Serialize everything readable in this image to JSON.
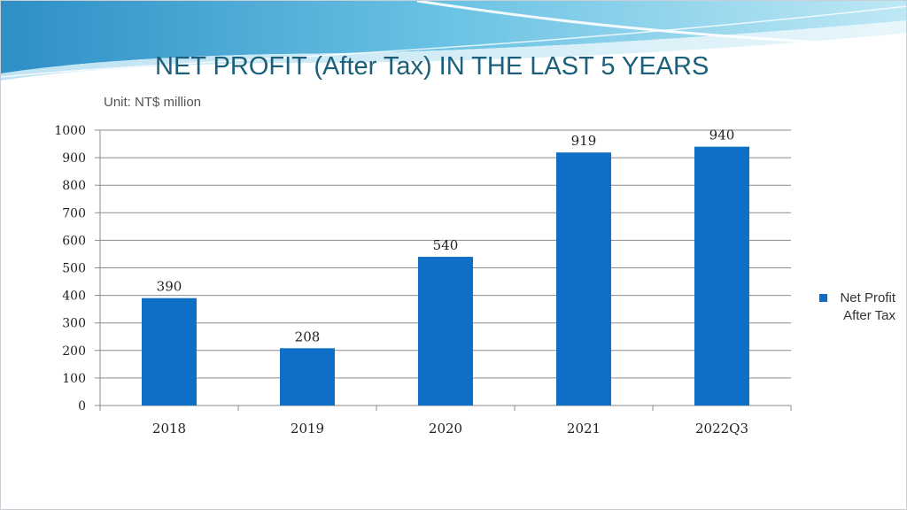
{
  "slide": {
    "title": "NET PROFIT (After Tax) IN THE LAST 5 YEARS",
    "subtitle": "Unit: NT$ million"
  },
  "theme": {
    "bar_color": "#0f6fc6",
    "grid_color": "#8c8c8c",
    "title_color": "#1b5f7a"
  },
  "legend": {
    "line1": "Net Profit",
    "line2": "After Tax"
  },
  "chart_data": {
    "type": "bar",
    "title": "NET PROFIT (After Tax) IN THE LAST 5 YEARS",
    "xlabel": "",
    "ylabel": "",
    "categories": [
      "2018",
      "2019",
      "2020",
      "2021",
      "2022Q3"
    ],
    "series": [
      {
        "name": "Net Profit After Tax",
        "values": [
          390,
          208,
          540,
          919,
          940
        ]
      }
    ],
    "ylim": [
      0,
      1000
    ],
    "yticks": [
      0,
      100,
      200,
      300,
      400,
      500,
      600,
      700,
      800,
      900,
      1000
    ],
    "grid": true,
    "legend_position": "right",
    "data_labels": true
  }
}
